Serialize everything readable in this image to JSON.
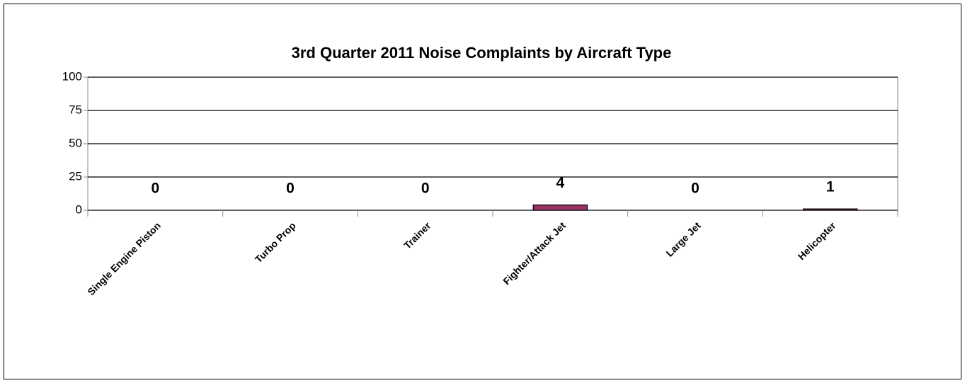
{
  "chart_data": {
    "type": "bar",
    "title": "3rd Quarter 2011 Noise Complaints by Aircraft Type",
    "categories": [
      "Single Engine Piston",
      "Turbo Prop",
      "Trainer",
      "Fighter/Attack Jet",
      "Large Jet",
      "Helicopter"
    ],
    "values": [
      0,
      0,
      0,
      4,
      0,
      1
    ],
    "color": "#993366",
    "ylim": [
      0,
      100
    ],
    "yticks": [
      0,
      25,
      50,
      75,
      100
    ],
    "grid": true
  }
}
